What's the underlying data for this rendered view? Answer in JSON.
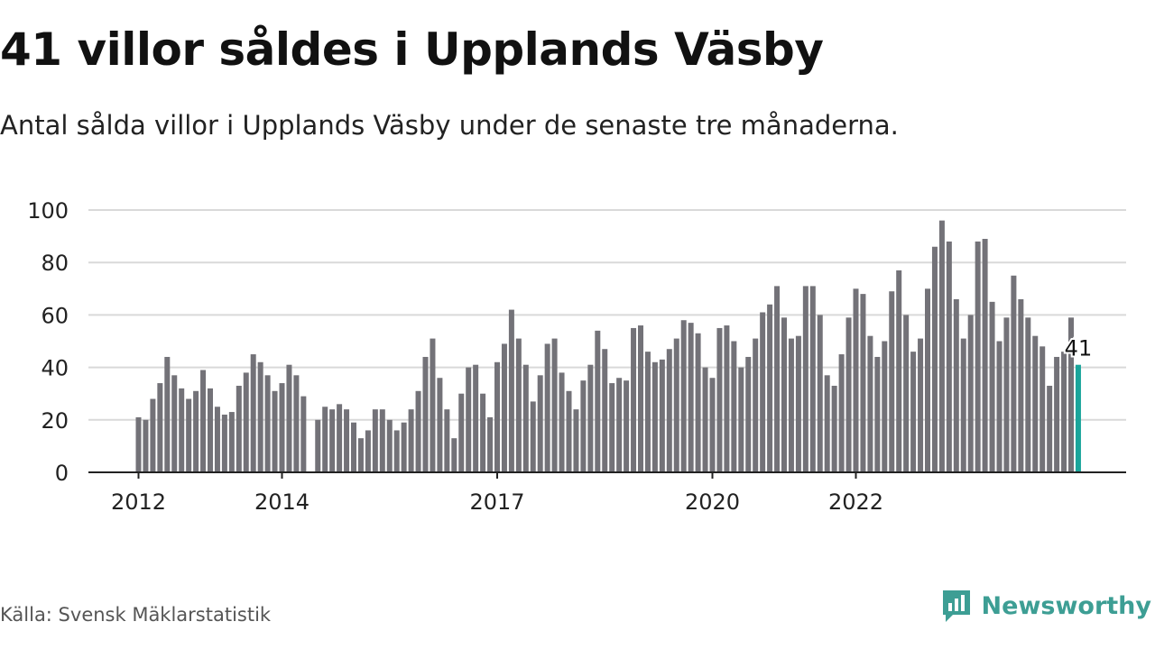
{
  "header": {
    "title": "41 villor såldes i Upplands Väsby",
    "subtitle": "Antal sålda villor i Upplands Väsby under de senaste tre månaderna."
  },
  "footer": {
    "source": "Källa: Svensk Mäklarstatistik",
    "brand": "Newsworthy",
    "brand_icon": "newsworthy-logo-icon"
  },
  "colors": {
    "bar": "#737278",
    "highlight": "#1aa59b",
    "grid": "#d9d9d9",
    "axis": "#222222",
    "brand": "#3d9e94"
  },
  "chart_data": {
    "type": "bar",
    "title": "41 villor såldes i Upplands Väsby",
    "subtitle": "Antal sålda villor i Upplands Väsby under de senaste tre månaderna.",
    "xlabel": "",
    "ylabel": "",
    "ylim": [
      0,
      100
    ],
    "yticks": [
      0,
      20,
      40,
      60,
      80,
      100
    ],
    "grid": true,
    "x_tick_labels": [
      "2012",
      "2014",
      "2017",
      "2020",
      "2022"
    ],
    "x_tick_positions": [
      0,
      20,
      50,
      80,
      100
    ],
    "values": [
      21,
      20,
      28,
      34,
      44,
      37,
      32,
      28,
      31,
      39,
      32,
      25,
      22,
      23,
      33,
      38,
      45,
      42,
      37,
      31,
      34,
      41,
      37,
      29,
      null,
      20,
      25,
      24,
      26,
      24,
      19,
      13,
      16,
      24,
      24,
      20,
      16,
      19,
      24,
      31,
      44,
      51,
      36,
      24,
      13,
      30,
      40,
      41,
      30,
      21,
      42,
      49,
      62,
      51,
      41,
      27,
      37,
      49,
      51,
      38,
      31,
      24,
      35,
      41,
      54,
      47,
      34,
      36,
      35,
      55,
      56,
      46,
      42,
      43,
      47,
      51,
      58,
      57,
      53,
      40,
      36,
      55,
      56,
      50,
      40,
      44,
      51,
      61,
      64,
      71,
      59,
      51,
      52,
      71,
      71,
      60,
      37,
      33,
      45,
      59,
      70,
      68,
      52,
      44,
      50,
      69,
      77,
      60,
      46,
      51,
      70,
      86,
      96,
      88,
      66,
      51,
      60,
      88,
      89,
      65,
      50,
      59,
      75,
      66,
      59,
      52,
      48,
      33,
      44,
      46,
      59,
      41
    ],
    "highlight_index": 131,
    "highlight_label": "41"
  }
}
